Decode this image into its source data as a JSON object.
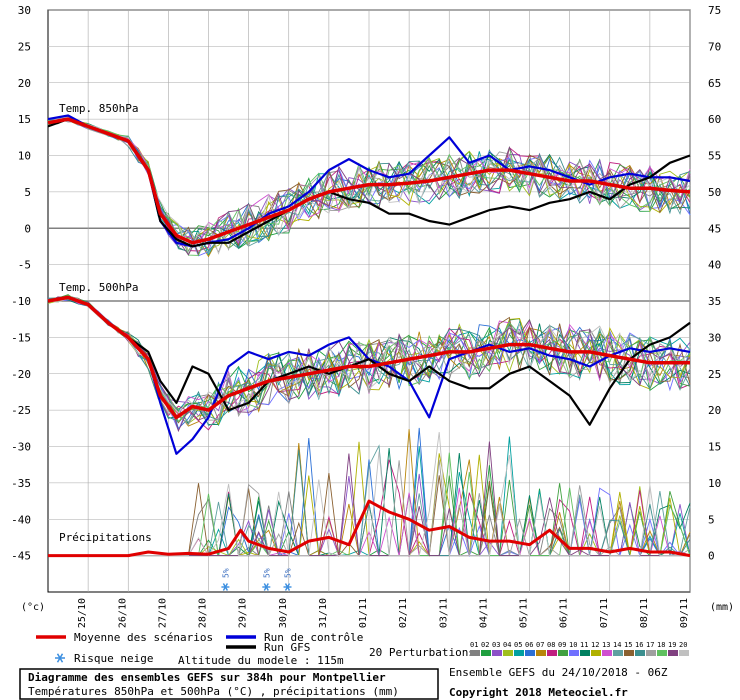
{
  "chart_data": {
    "type": "line",
    "title": "Diagramme des ensembles GEFS sur 384h pour Montpellier",
    "subtitle": "Températures 850hPa et 500hPa (°C) , précipitations (mm)",
    "left_axis": {
      "label": "(°c)",
      "range": [
        -50,
        30
      ],
      "ticks": [
        30,
        25,
        20,
        15,
        10,
        5,
        0,
        -5,
        -10,
        -15,
        -20,
        -25,
        -30,
        -35,
        -40,
        -45
      ]
    },
    "right_axis": {
      "label": "(mm)",
      "ticks": [
        75,
        70,
        65,
        60,
        55,
        50,
        45,
        40,
        35,
        30,
        25,
        20,
        15,
        10,
        5,
        0
      ]
    },
    "x_dates": [
      "25/10",
      "26/10",
      "27/10",
      "28/10",
      "29/10",
      "30/10",
      "31/10",
      "01/11",
      "02/11",
      "03/11",
      "04/11",
      "05/11",
      "06/11",
      "07/11",
      "08/11",
      "09/11"
    ],
    "x_domain": [
      0,
      16
    ],
    "section_labels": {
      "t850": "Temp. 850hPa",
      "t500": "Temp. 500hPa",
      "precip": "Précipitations"
    },
    "t850_mean": {
      "x": [
        0,
        0.5,
        1,
        1.5,
        2,
        2.5,
        2.8,
        3.2,
        3.6,
        4,
        4.5,
        5,
        5.5,
        6,
        6.5,
        7,
        7.5,
        8,
        8.5,
        9,
        9.5,
        10,
        10.5,
        11,
        11.5,
        12,
        12.5,
        13,
        13.5,
        14,
        14.5,
        15,
        15.5,
        16
      ],
      "y": [
        14.5,
        15,
        14,
        13,
        12,
        8,
        2,
        -1,
        -2,
        -1.5,
        -0.5,
        0.5,
        1.5,
        2.5,
        4,
        5,
        5.5,
        6,
        6,
        6.2,
        6.5,
        7,
        7.5,
        8,
        8,
        7.5,
        7,
        6.5,
        6.5,
        6,
        5.5,
        5.5,
        5.2,
        5
      ]
    },
    "t850_control": {
      "x": [
        0,
        0.5,
        1,
        1.5,
        2,
        2.5,
        2.8,
        3.2,
        3.6,
        4,
        4.5,
        5,
        5.5,
        6,
        6.5,
        7,
        7.5,
        8,
        8.5,
        9,
        9.5,
        10,
        10.5,
        11,
        11.5,
        12,
        12.5,
        13,
        13.5,
        14,
        14.5,
        15,
        15.5,
        16
      ],
      "y": [
        15,
        15.5,
        14,
        13,
        12,
        8,
        1,
        -2,
        -2.5,
        -2,
        -1.5,
        0,
        2,
        3,
        5,
        8,
        9.5,
        8,
        7,
        7.5,
        10,
        12.5,
        9,
        10,
        8,
        8.5,
        8,
        7,
        6,
        7,
        7.5,
        7,
        7,
        6.5
      ]
    },
    "t850_gfs": {
      "x": [
        0,
        0.5,
        1,
        1.5,
        2,
        2.5,
        2.8,
        3.2,
        3.6,
        4,
        4.5,
        5,
        5.5,
        6,
        6.5,
        7,
        7.5,
        8,
        8.5,
        9,
        9.5,
        10,
        10.5,
        11,
        11.5,
        12,
        12.5,
        13,
        13.5,
        14,
        14.5,
        15,
        15.5,
        16
      ],
      "y": [
        14,
        15,
        14,
        13,
        12,
        8,
        1,
        -1.5,
        -2.5,
        -2,
        -2,
        -0.5,
        1,
        2.5,
        4,
        5,
        4,
        3.5,
        2,
        2,
        1,
        0.5,
        1.5,
        2.5,
        3,
        2.5,
        3.5,
        4,
        5,
        4,
        6,
        7,
        9,
        10
      ]
    },
    "t500_mean": {
      "x": [
        0,
        0.5,
        1,
        1.5,
        2,
        2.5,
        2.8,
        3.2,
        3.6,
        4,
        4.5,
        5,
        5.5,
        6,
        6.5,
        7,
        7.5,
        8,
        8.5,
        9,
        9.5,
        10,
        10.5,
        11,
        11.5,
        12,
        12.5,
        13,
        13.5,
        14,
        14.5,
        15,
        15.5,
        16
      ],
      "y": [
        -10,
        -9.5,
        -10.5,
        -13,
        -15,
        -18,
        -23,
        -26,
        -24.5,
        -25,
        -23,
        -22,
        -21,
        -20.5,
        -20,
        -19.5,
        -19,
        -19,
        -18.5,
        -18,
        -17.5,
        -17,
        -17,
        -16.5,
        -16,
        -16,
        -16.5,
        -17,
        -17,
        -17.5,
        -18,
        -18.5,
        -18.5,
        -18.5
      ]
    },
    "t500_control": {
      "x": [
        0,
        0.5,
        1,
        1.5,
        2,
        2.5,
        2.8,
        3.2,
        3.6,
        4,
        4.5,
        5,
        5.5,
        6,
        6.5,
        7,
        7.5,
        8,
        8.5,
        9,
        9.5,
        10,
        10.5,
        11,
        11.5,
        12,
        12.5,
        13,
        13.5,
        14,
        14.5,
        15,
        15.5,
        16
      ],
      "y": [
        -10,
        -9.5,
        -10.5,
        -13,
        -15,
        -18,
        -24,
        -31,
        -29,
        -26,
        -19,
        -17,
        -18,
        -17,
        -17.5,
        -16,
        -15,
        -18,
        -19,
        -21,
        -26,
        -18,
        -17,
        -16,
        -17,
        -16.5,
        -17.5,
        -18,
        -19,
        -17.5,
        -16.5,
        -17,
        -16.5,
        -17
      ]
    },
    "t500_gfs": {
      "x": [
        0,
        0.5,
        1,
        1.5,
        2,
        2.5,
        2.8,
        3.2,
        3.6,
        4,
        4.5,
        5,
        5.5,
        6,
        6.5,
        7,
        7.5,
        8,
        8.5,
        9,
        9.5,
        10,
        10.5,
        11,
        11.5,
        12,
        12.5,
        13,
        13.5,
        14,
        14.5,
        15,
        15.5,
        16
      ],
      "y": [
        -10,
        -9.5,
        -10.5,
        -13,
        -15,
        -17,
        -21,
        -24,
        -19,
        -20,
        -25,
        -24,
        -21,
        -20,
        -19,
        -20,
        -19,
        -18,
        -20,
        -21,
        -19,
        -21,
        -22,
        -22,
        -20,
        -19,
        -21,
        -23,
        -27,
        -22,
        -18,
        -16,
        -15,
        -13
      ]
    },
    "precip_mean": {
      "x": [
        0,
        1,
        2,
        2.5,
        3,
        3.5,
        4,
        4.5,
        4.8,
        5,
        5.5,
        6,
        6.5,
        7,
        7.5,
        8,
        8.5,
        9,
        9.5,
        10,
        10.5,
        11,
        11.5,
        12,
        12.5,
        13,
        13.5,
        14,
        14.5,
        15,
        15.5,
        16
      ],
      "y": [
        0,
        0,
        0,
        0.5,
        0.2,
        0.3,
        0.2,
        1,
        3.5,
        2,
        1,
        0.5,
        2,
        2.5,
        1.5,
        7.5,
        6,
        5,
        3.5,
        4,
        2.5,
        2,
        2,
        1.5,
        3.5,
        1,
        1,
        0.5,
        1,
        0.5,
        0.5,
        0
      ]
    },
    "snow_markers": {
      "label": "5%",
      "x": [
        4.42,
        5.44,
        5.97
      ]
    },
    "legend": {
      "mean": "Moyenne des scénarios",
      "control": "Run de contrôle",
      "gfs": "Run GFS",
      "perturbations": "20 Perturbations",
      "snow": "Risque neige",
      "altitude": "Altitude du modele : 115m"
    },
    "perturbation_ids": [
      "01",
      "02",
      "03",
      "04",
      "05",
      "06",
      "07",
      "08",
      "09",
      "10",
      "11",
      "12",
      "13",
      "14",
      "15",
      "16",
      "17",
      "18",
      "19",
      "20"
    ],
    "perturbation_colors": [
      "#808080",
      "#1f9f3f",
      "#8c52c8",
      "#9fbf1f",
      "#00a0a0",
      "#2a6fd6",
      "#b8860b",
      "#c02080",
      "#40a040",
      "#7070ff",
      "#008060",
      "#b0b000",
      "#d050d0",
      "#5fa0a0",
      "#8a6030",
      "#3c8f8f",
      "#a0a0a0",
      "#60c060",
      "#804080",
      "#c0c0c0"
    ],
    "colors": {
      "mean": "#e00000",
      "control": "#0000d8",
      "gfs": "#000000"
    },
    "footer": {
      "ensemble": "Ensemble GEFS du 24/10/2018 - 06Z",
      "copyright": "Copyright 2018 Meteociel.fr"
    }
  }
}
